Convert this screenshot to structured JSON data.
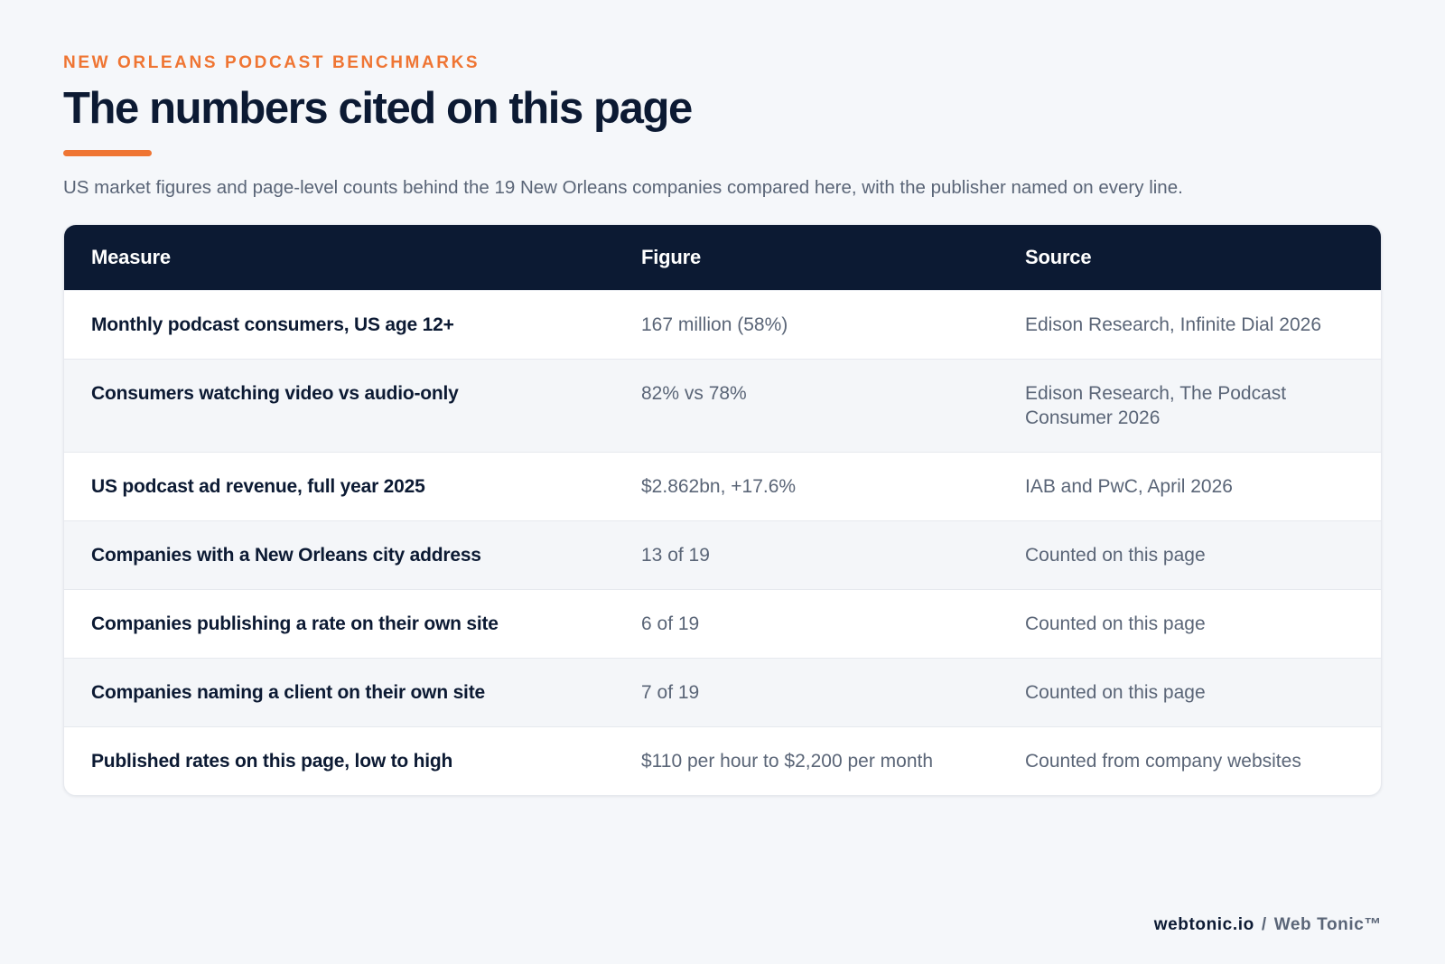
{
  "header": {
    "eyebrow": "NEW ORLEANS PODCAST BENCHMARKS",
    "title": "The numbers cited on this page",
    "subtitle": "US market figures and page-level counts behind the 19 New Orleans companies compared here, with the publisher named on every line."
  },
  "table": {
    "columns": [
      "Measure",
      "Figure",
      "Source"
    ],
    "rows": [
      {
        "measure": "Monthly podcast consumers, US age 12+",
        "figure": "167 million (58%)",
        "source": "Edison Research, Infinite Dial 2026"
      },
      {
        "measure": "Consumers watching video vs audio-only",
        "figure": "82% vs 78%",
        "source": "Edison Research, The Podcast Consumer 2026"
      },
      {
        "measure": "US podcast ad revenue, full year 2025",
        "figure": "$2.862bn, +17.6%",
        "source": "IAB and PwC, April 2026"
      },
      {
        "measure": "Companies with a New Orleans city address",
        "figure": "13 of 19",
        "source": "Counted on this page"
      },
      {
        "measure": "Companies publishing a rate on their own site",
        "figure": "6 of 19",
        "source": "Counted on this page"
      },
      {
        "measure": "Companies naming a client on their own site",
        "figure": "7 of 19",
        "source": "Counted on this page"
      },
      {
        "measure": "Published rates on this page, low to high",
        "figure": "$110 per hour to $2,200 per month",
        "source": "Counted from company websites"
      }
    ]
  },
  "footer": {
    "domain": "webtonic.io",
    "separator": "/",
    "brand": "Web Tonic™"
  },
  "colors": {
    "accent": "#ef7533",
    "navy": "#0c1a33",
    "muted_text": "#5a6577",
    "background": "#f5f7fa"
  }
}
